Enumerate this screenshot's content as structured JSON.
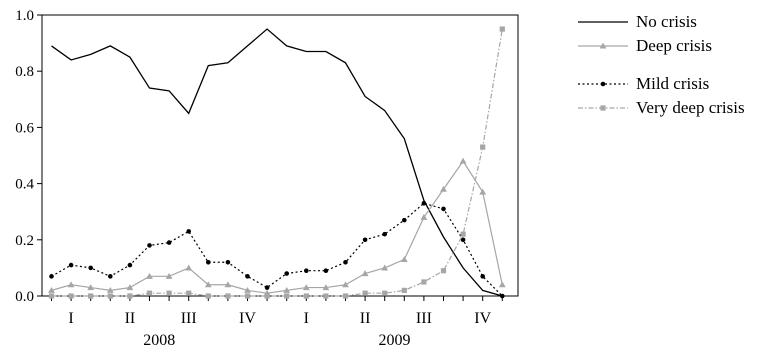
{
  "chart_data": {
    "type": "line",
    "title": "",
    "xlabel": "",
    "ylabel": "",
    "ylim": [
      0,
      1.0
    ],
    "yticks": [
      0.0,
      0.2,
      0.4,
      0.6,
      0.8,
      1.0
    ],
    "ytick_labels": [
      "0.0",
      "0.2",
      "0.4",
      "0.6",
      "0.8",
      "1.0"
    ],
    "grid": false,
    "legend_position": "top-right",
    "x": [
      "2008-01",
      "2008-02",
      "2008-03",
      "2008-04",
      "2008-05",
      "2008-06",
      "2008-07",
      "2008-08",
      "2008-09",
      "2008-10",
      "2008-11",
      "2008-12",
      "2009-01",
      "2009-02",
      "2009-03",
      "2009-04",
      "2009-05",
      "2009-06",
      "2009-07",
      "2009-08",
      "2009-09",
      "2009-10",
      "2009-11",
      "2009-12"
    ],
    "quarter_labels": [
      {
        "label": "I",
        "year": "2008",
        "quarter": 1
      },
      {
        "label": "II",
        "year": "2008",
        "quarter": 2
      },
      {
        "label": "III",
        "year": "2008",
        "quarter": 3
      },
      {
        "label": "IV",
        "year": "2008",
        "quarter": 4
      },
      {
        "label": "I",
        "year": "2009",
        "quarter": 1
      },
      {
        "label": "II",
        "year": "2009",
        "quarter": 2
      },
      {
        "label": "III",
        "year": "2009",
        "quarter": 3
      },
      {
        "label": "IV",
        "year": "2009",
        "quarter": 4
      }
    ],
    "year_labels": [
      "2008",
      "2009"
    ],
    "legend_groups": [
      [
        "No crisis",
        "Deep crisis"
      ],
      [
        "Mild crisis",
        "Very deep crisis"
      ]
    ],
    "series": [
      {
        "name": "No crisis",
        "color": "#000000",
        "style": "solid",
        "marker": "none",
        "values": [
          0.89,
          0.84,
          0.86,
          0.89,
          0.85,
          0.74,
          0.73,
          0.65,
          0.82,
          0.83,
          0.89,
          0.95,
          0.89,
          0.87,
          0.87,
          0.83,
          0.71,
          0.66,
          0.56,
          0.34,
          0.21,
          0.1,
          0.02,
          0.0
        ]
      },
      {
        "name": "Deep crisis",
        "color": "#a6a6a6",
        "style": "solid",
        "marker": "triangle",
        "values": [
          0.02,
          0.04,
          0.03,
          0.02,
          0.03,
          0.07,
          0.07,
          0.1,
          0.04,
          0.04,
          0.02,
          0.01,
          0.02,
          0.03,
          0.03,
          0.04,
          0.08,
          0.1,
          0.13,
          0.28,
          0.38,
          0.48,
          0.37,
          0.04
        ]
      },
      {
        "name": "Mild crisis",
        "color": "#000000",
        "style": "dotted",
        "marker": "circle",
        "values": [
          0.07,
          0.11,
          0.1,
          0.07,
          0.11,
          0.18,
          0.19,
          0.23,
          0.12,
          0.12,
          0.07,
          0.03,
          0.08,
          0.09,
          0.09,
          0.12,
          0.2,
          0.22,
          0.27,
          0.33,
          0.31,
          0.2,
          0.07,
          0.0
        ]
      },
      {
        "name": "Very deep crisis",
        "color": "#a6a6a6",
        "style": "dashdot",
        "marker": "square",
        "values": [
          0.0,
          0.0,
          0.0,
          0.0,
          0.0,
          0.01,
          0.01,
          0.01,
          0.0,
          0.0,
          0.0,
          0.0,
          0.0,
          0.0,
          0.0,
          0.0,
          0.01,
          0.01,
          0.02,
          0.05,
          0.09,
          0.22,
          0.53,
          0.95
        ]
      }
    ]
  }
}
